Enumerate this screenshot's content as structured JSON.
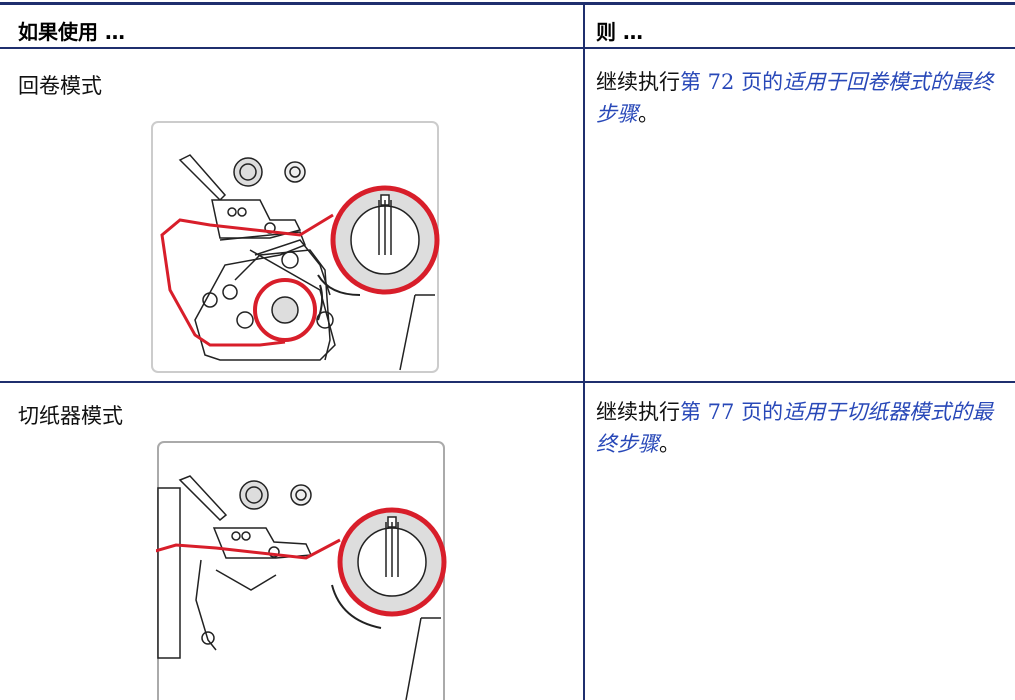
{
  "table": {
    "header": [
      "如果使用 …",
      "则 …"
    ],
    "rows": [
      {
        "mode": "回卷模式",
        "action": {
          "prefix": "继续执行",
          "page_ref": "第 72 页的",
          "link": "适用于回卷模式的最终步骤",
          "suffix": "。"
        }
      },
      {
        "mode": "切纸器模式",
        "action": {
          "prefix": "继续执行",
          "page_ref": "第 77 页的",
          "link": "适用于切纸器模式的最终步骤",
          "suffix": "。"
        }
      }
    ]
  }
}
